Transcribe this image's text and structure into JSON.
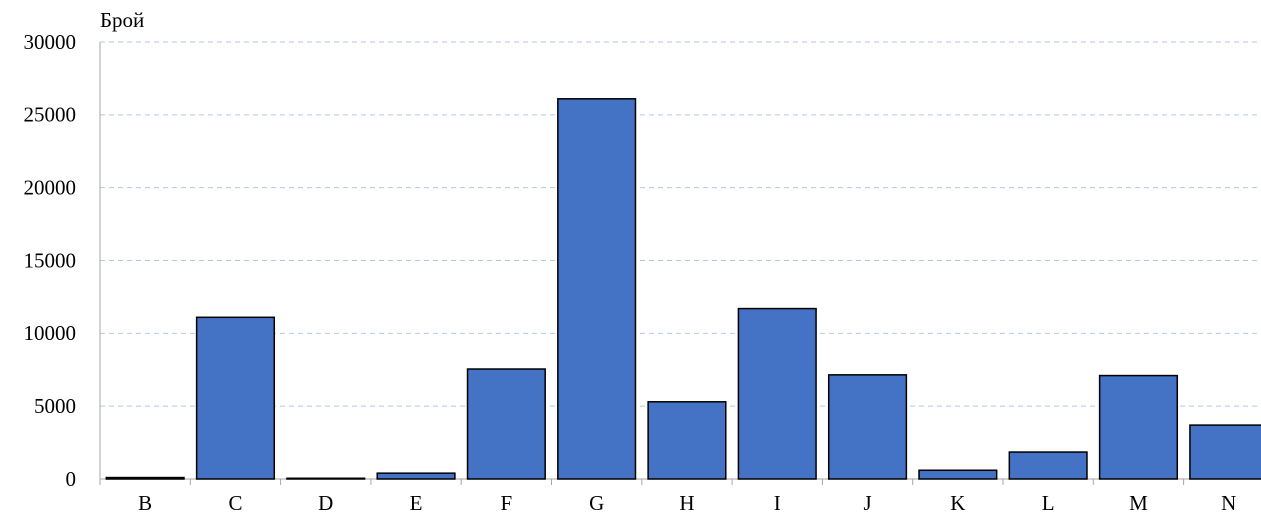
{
  "chart_data": {
    "type": "bar",
    "y_label": "Брой",
    "categories": [
      "B",
      "C",
      "D",
      "E",
      "F",
      "G",
      "H",
      "I",
      "J",
      "K",
      "L",
      "M",
      "N"
    ],
    "values": [
      100,
      11100,
      50,
      400,
      7550,
      26100,
      5300,
      11700,
      7150,
      600,
      1850,
      7100,
      3700
    ],
    "color": "#4472c4",
    "ylim": [
      0,
      30000
    ],
    "yticks": [
      0,
      5000,
      10000,
      15000,
      20000,
      25000,
      30000
    ],
    "grid": true
  }
}
